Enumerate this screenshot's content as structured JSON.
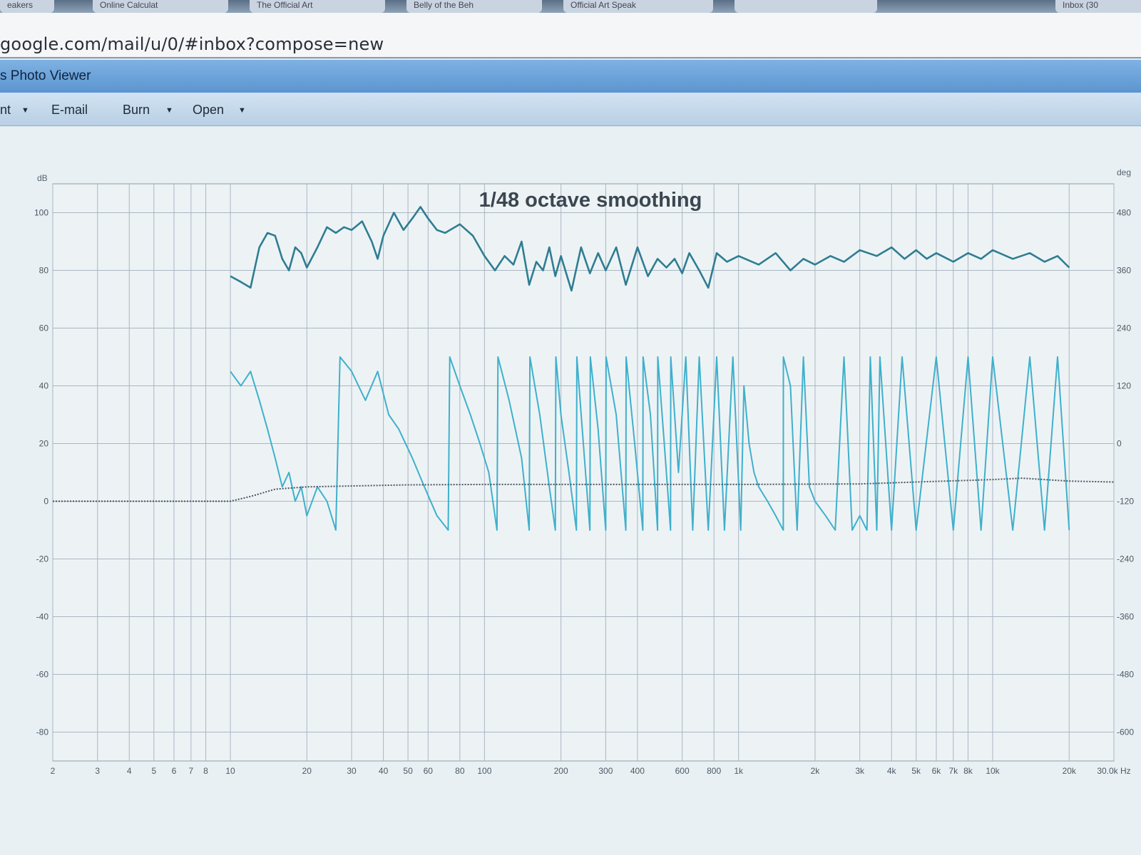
{
  "browser": {
    "tabs": [
      "eakers",
      "Online Calculat",
      "The Official Art",
      "Belly of the Beh",
      "Official Art Speak",
      "",
      "Inbox (30"
    ],
    "address": "google.com/mail/u/0/#inbox?compose=new"
  },
  "viewer": {
    "title": "s Photo Viewer",
    "toolbar": {
      "print_label": "nt",
      "email_label": "E-mail",
      "burn_label": "Burn",
      "open_label": "Open"
    }
  },
  "colors": {
    "magnitude": "#2f7d92",
    "phase": "#3fb0cc",
    "grid": "#a9b6c2",
    "background": "#edf3f5"
  },
  "chart_data": {
    "type": "line",
    "title": "1/48 octave smoothing",
    "xlabel": "Hz",
    "ylabel": "dB",
    "y2label": "deg",
    "x_scale": "log",
    "xlim": [
      2,
      30000
    ],
    "ylim": [
      -90,
      110
    ],
    "y2lim": [
      -660,
      540
    ],
    "grid": true,
    "x_ticks": [
      {
        "v": 2,
        "t": "2"
      },
      {
        "v": 3,
        "t": "3"
      },
      {
        "v": 4,
        "t": "4"
      },
      {
        "v": 5,
        "t": "5"
      },
      {
        "v": 6,
        "t": "6"
      },
      {
        "v": 7,
        "t": "7"
      },
      {
        "v": 8,
        "t": "8"
      },
      {
        "v": 10,
        "t": "10"
      },
      {
        "v": 20,
        "t": "20"
      },
      {
        "v": 30,
        "t": "30"
      },
      {
        "v": 40,
        "t": "40"
      },
      {
        "v": 50,
        "t": "50"
      },
      {
        "v": 60,
        "t": "60"
      },
      {
        "v": 80,
        "t": "80"
      },
      {
        "v": 100,
        "t": "100"
      },
      {
        "v": 200,
        "t": "200"
      },
      {
        "v": 300,
        "t": "300"
      },
      {
        "v": 400,
        "t": "400"
      },
      {
        "v": 600,
        "t": "600"
      },
      {
        "v": 800,
        "t": "800"
      },
      {
        "v": 1000,
        "t": "1k"
      },
      {
        "v": 2000,
        "t": "2k"
      },
      {
        "v": 3000,
        "t": "3k"
      },
      {
        "v": 4000,
        "t": "4k"
      },
      {
        "v": 5000,
        "t": "5k"
      },
      {
        "v": 6000,
        "t": "6k"
      },
      {
        "v": 7000,
        "t": "7k"
      },
      {
        "v": 8000,
        "t": "8k"
      },
      {
        "v": 10000,
        "t": "10k"
      },
      {
        "v": 20000,
        "t": "20k"
      },
      {
        "v": 30000,
        "t": "30.0k Hz"
      }
    ],
    "y_ticks": [
      {
        "v": 100,
        "t": "100"
      },
      {
        "v": 80,
        "t": "80"
      },
      {
        "v": 60,
        "t": "60"
      },
      {
        "v": 40,
        "t": "40"
      },
      {
        "v": 20,
        "t": "20"
      },
      {
        "v": 0,
        "t": "0"
      },
      {
        "v": -20,
        "t": "-20"
      },
      {
        "v": -40,
        "t": "-40"
      },
      {
        "v": -60,
        "t": "-60"
      },
      {
        "v": -80,
        "t": "-80"
      }
    ],
    "y2_ticks": [
      {
        "v": 480,
        "t": "480"
      },
      {
        "v": 360,
        "t": "360"
      },
      {
        "v": 240,
        "t": "240"
      },
      {
        "v": 120,
        "t": "120"
      },
      {
        "v": 0,
        "t": "0"
      },
      {
        "v": -120,
        "t": "-120"
      },
      {
        "v": -240,
        "t": "-240"
      },
      {
        "v": -360,
        "t": "-360"
      },
      {
        "v": -480,
        "t": "-480"
      },
      {
        "v": -600,
        "t": "-600"
      }
    ],
    "series": [
      {
        "kind": "magnitude",
        "axis": "dB",
        "points": [
          [
            10,
            78
          ],
          [
            11,
            76
          ],
          [
            12,
            74
          ],
          [
            13,
            88
          ],
          [
            14,
            93
          ],
          [
            15,
            92
          ],
          [
            16,
            84
          ],
          [
            17,
            80
          ],
          [
            18,
            88
          ],
          [
            19,
            86
          ],
          [
            20,
            81
          ],
          [
            22,
            88
          ],
          [
            24,
            95
          ],
          [
            26,
            93
          ],
          [
            28,
            95
          ],
          [
            30,
            94
          ],
          [
            33,
            97
          ],
          [
            36,
            90
          ],
          [
            38,
            84
          ],
          [
            40,
            92
          ],
          [
            44,
            100
          ],
          [
            48,
            94
          ],
          [
            52,
            98
          ],
          [
            56,
            102
          ],
          [
            60,
            98
          ],
          [
            65,
            94
          ],
          [
            70,
            93
          ],
          [
            80,
            96
          ],
          [
            90,
            92
          ],
          [
            100,
            85
          ],
          [
            110,
            80
          ],
          [
            120,
            85
          ],
          [
            130,
            82
          ],
          [
            140,
            90
          ],
          [
            150,
            75
          ],
          [
            160,
            83
          ],
          [
            170,
            80
          ],
          [
            180,
            88
          ],
          [
            190,
            78
          ],
          [
            200,
            85
          ],
          [
            220,
            73
          ],
          [
            240,
            88
          ],
          [
            260,
            79
          ],
          [
            280,
            86
          ],
          [
            300,
            80
          ],
          [
            330,
            88
          ],
          [
            360,
            75
          ],
          [
            400,
            88
          ],
          [
            440,
            78
          ],
          [
            480,
            84
          ],
          [
            520,
            81
          ],
          [
            560,
            84
          ],
          [
            600,
            79
          ],
          [
            640,
            86
          ],
          [
            700,
            80
          ],
          [
            760,
            74
          ],
          [
            820,
            86
          ],
          [
            900,
            83
          ],
          [
            1000,
            85
          ],
          [
            1200,
            82
          ],
          [
            1400,
            86
          ],
          [
            1600,
            80
          ],
          [
            1800,
            84
          ],
          [
            2000,
            82
          ],
          [
            2300,
            85
          ],
          [
            2600,
            83
          ],
          [
            3000,
            87
          ],
          [
            3500,
            85
          ],
          [
            4000,
            88
          ],
          [
            4500,
            84
          ],
          [
            5000,
            87
          ],
          [
            5500,
            84
          ],
          [
            6000,
            86
          ],
          [
            7000,
            83
          ],
          [
            8000,
            86
          ],
          [
            9000,
            84
          ],
          [
            10000,
            87
          ],
          [
            12000,
            84
          ],
          [
            14000,
            86
          ],
          [
            16000,
            83
          ],
          [
            18000,
            85
          ],
          [
            20000,
            81
          ]
        ]
      },
      {
        "kind": "phase",
        "axis": "deg",
        "points": [
          [
            10,
            150
          ],
          [
            11,
            120
          ],
          [
            12,
            150
          ],
          [
            13,
            90
          ],
          [
            14,
            30
          ],
          [
            15,
            -30
          ],
          [
            16,
            -90
          ],
          [
            17,
            -60
          ],
          [
            18,
            -120
          ],
          [
            19,
            -90
          ],
          [
            20,
            -150
          ],
          [
            22,
            -90
          ],
          [
            24,
            -120
          ],
          [
            26,
            -180
          ],
          [
            27,
            180
          ],
          [
            30,
            150
          ],
          [
            34,
            90
          ],
          [
            38,
            150
          ],
          [
            42,
            60
          ],
          [
            46,
            30
          ],
          [
            52,
            -30
          ],
          [
            58,
            -90
          ],
          [
            65,
            -150
          ],
          [
            72,
            -180
          ],
          [
            73,
            180
          ],
          [
            80,
            120
          ],
          [
            88,
            60
          ],
          [
            96,
            0
          ],
          [
            104,
            -60
          ],
          [
            112,
            -180
          ],
          [
            113,
            180
          ],
          [
            125,
            90
          ],
          [
            140,
            -30
          ],
          [
            150,
            -180
          ],
          [
            151,
            180
          ],
          [
            165,
            60
          ],
          [
            180,
            -90
          ],
          [
            190,
            -180
          ],
          [
            191,
            180
          ],
          [
            200,
            60
          ],
          [
            215,
            -60
          ],
          [
            230,
            -180
          ],
          [
            231,
            180
          ],
          [
            245,
            0
          ],
          [
            260,
            -180
          ],
          [
            261,
            180
          ],
          [
            280,
            30
          ],
          [
            300,
            -180
          ],
          [
            301,
            180
          ],
          [
            330,
            60
          ],
          [
            360,
            -180
          ],
          [
            361,
            180
          ],
          [
            390,
            0
          ],
          [
            420,
            -180
          ],
          [
            421,
            180
          ],
          [
            450,
            60
          ],
          [
            480,
            -180
          ],
          [
            481,
            180
          ],
          [
            510,
            0
          ],
          [
            540,
            -180
          ],
          [
            541,
            180
          ],
          [
            580,
            -60
          ],
          [
            620,
            180
          ],
          [
            660,
            -180
          ],
          [
            700,
            180
          ],
          [
            760,
            -180
          ],
          [
            820,
            180
          ],
          [
            880,
            -180
          ],
          [
            950,
            180
          ],
          [
            1020,
            -180
          ],
          [
            1050,
            120
          ],
          [
            1100,
            0
          ],
          [
            1150,
            -60
          ],
          [
            1200,
            -90
          ],
          [
            1300,
            -120
          ],
          [
            1400,
            -150
          ],
          [
            1500,
            -180
          ],
          [
            1501,
            180
          ],
          [
            1600,
            120
          ],
          [
            1700,
            -180
          ],
          [
            1800,
            180
          ],
          [
            1900,
            -90
          ],
          [
            2000,
            -120
          ],
          [
            2200,
            -150
          ],
          [
            2400,
            -180
          ],
          [
            2600,
            180
          ],
          [
            2800,
            -180
          ],
          [
            3000,
            -150
          ],
          [
            3200,
            -180
          ],
          [
            3300,
            180
          ],
          [
            3500,
            -180
          ],
          [
            3600,
            180
          ],
          [
            4000,
            -180
          ],
          [
            4400,
            180
          ],
          [
            5000,
            -180
          ],
          [
            6000,
            180
          ],
          [
            7000,
            -180
          ],
          [
            8000,
            180
          ],
          [
            9000,
            -180
          ],
          [
            10000,
            180
          ],
          [
            12000,
            -180
          ],
          [
            14000,
            180
          ],
          [
            16000,
            -180
          ],
          [
            18000,
            180
          ],
          [
            20000,
            -180
          ]
        ]
      },
      {
        "kind": "reference",
        "axis": "deg",
        "style": "dotted",
        "points": [
          [
            2,
            -120
          ],
          [
            10,
            -120
          ],
          [
            12,
            -110
          ],
          [
            15,
            -95
          ],
          [
            20,
            -90
          ],
          [
            50,
            -86
          ],
          [
            100,
            -85
          ],
          [
            1000,
            -85
          ],
          [
            3000,
            -84
          ],
          [
            5000,
            -80
          ],
          [
            10000,
            -75
          ],
          [
            13000,
            -72
          ],
          [
            20000,
            -78
          ],
          [
            30000,
            -80
          ]
        ]
      }
    ]
  }
}
